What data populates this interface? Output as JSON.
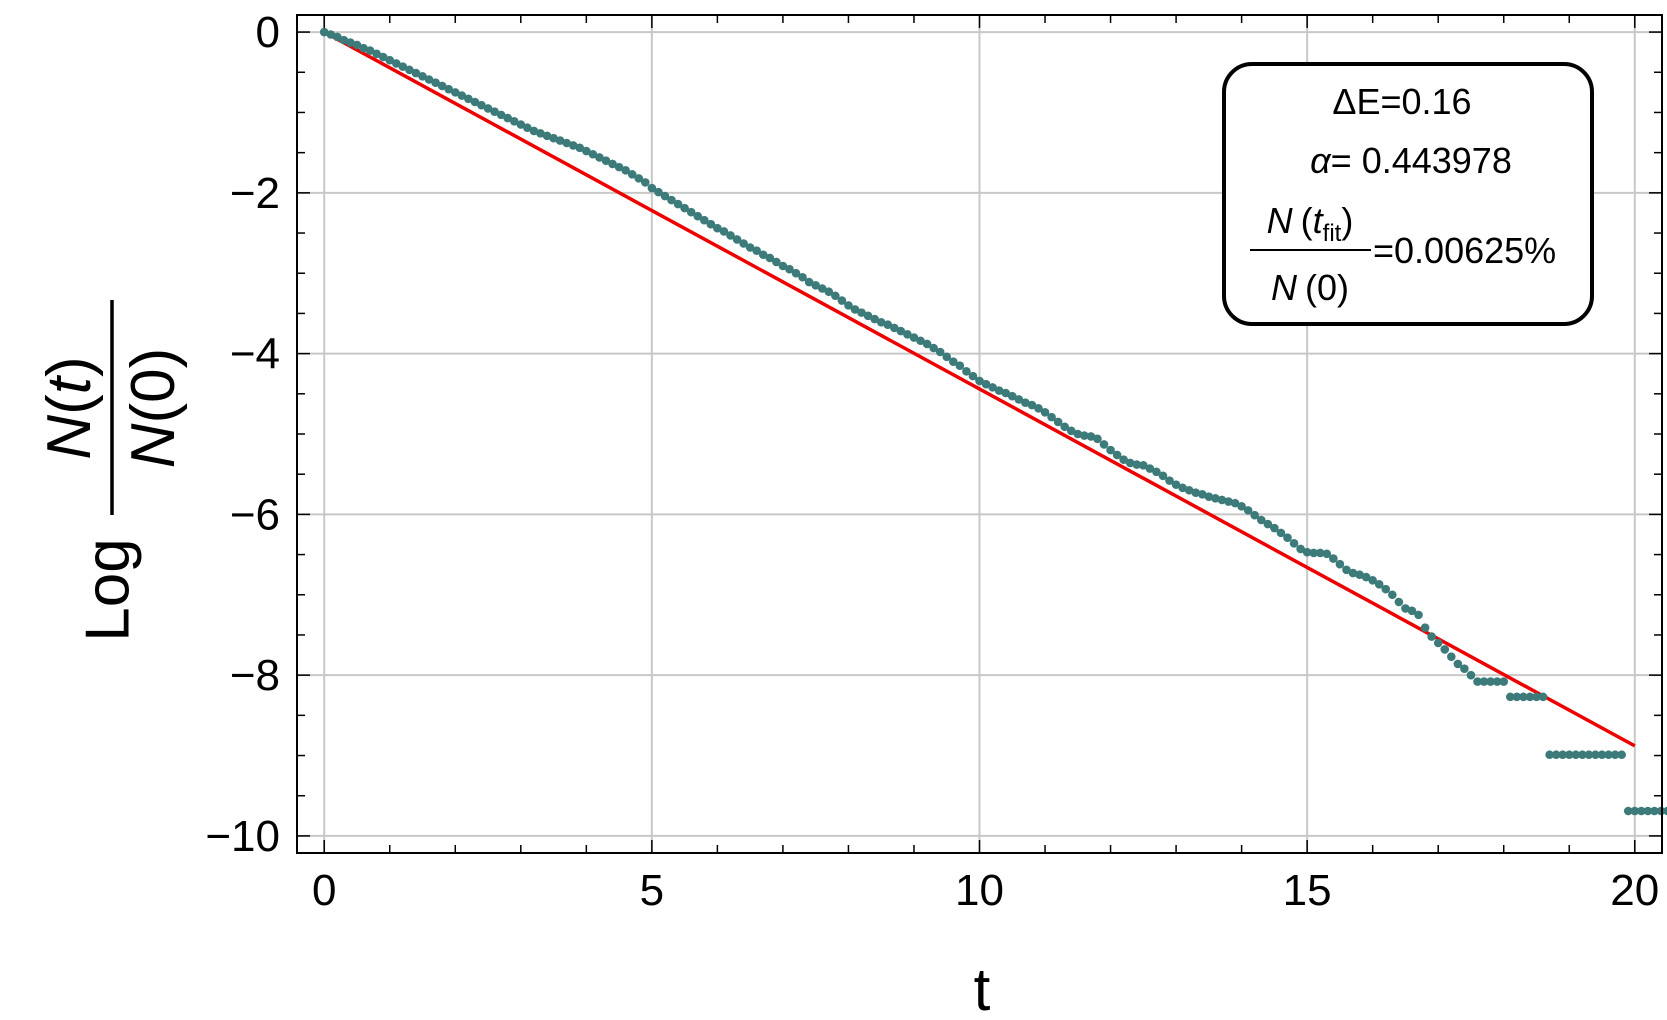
{
  "chart_data": {
    "type": "scatter",
    "title": "",
    "xlabel": "t",
    "ylabel": {
      "prefix": "Log",
      "numerator": "N",
      "numerator_arg": "t",
      "denominator": "N",
      "denominator_arg": "0"
    },
    "xlim": [
      -0.4,
      20.4
    ],
    "ylim": [
      -10.2,
      0.2
    ],
    "grid": true,
    "x_ticks": [
      0,
      5,
      10,
      15,
      20
    ],
    "y_ticks": [
      0,
      -2,
      -4,
      -6,
      -8,
      -10
    ],
    "x_tick_labels": [
      "0",
      "5",
      "10",
      "15",
      "20"
    ],
    "y_tick_labels": [
      "0",
      "−2",
      "−4",
      "−6",
      "−8",
      "−10"
    ],
    "series": [
      {
        "kind": "points",
        "color": "#3d7a7a",
        "x_start": 0,
        "x_step": 0.1,
        "y": [
          0,
          -0.03,
          -0.06,
          -0.1,
          -0.13,
          -0.16,
          -0.2,
          -0.23,
          -0.27,
          -0.31,
          -0.35,
          -0.39,
          -0.43,
          -0.47,
          -0.51,
          -0.55,
          -0.59,
          -0.63,
          -0.67,
          -0.71,
          -0.75,
          -0.79,
          -0.83,
          -0.87,
          -0.91,
          -0.95,
          -0.99,
          -1.03,
          -1.07,
          -1.11,
          -1.15,
          -1.19,
          -1.23,
          -1.26,
          -1.29,
          -1.32,
          -1.35,
          -1.38,
          -1.41,
          -1.44,
          -1.48,
          -1.52,
          -1.56,
          -1.6,
          -1.64,
          -1.68,
          -1.72,
          -1.77,
          -1.82,
          -1.87,
          -1.94,
          -1.99,
          -2.04,
          -2.09,
          -2.14,
          -2.19,
          -2.24,
          -2.29,
          -2.34,
          -2.39,
          -2.44,
          -2.48,
          -2.53,
          -2.58,
          -2.63,
          -2.68,
          -2.72,
          -2.77,
          -2.81,
          -2.86,
          -2.91,
          -2.95,
          -3.0,
          -3.05,
          -3.11,
          -3.15,
          -3.19,
          -3.23,
          -3.28,
          -3.34,
          -3.4,
          -3.45,
          -3.49,
          -3.53,
          -3.57,
          -3.61,
          -3.64,
          -3.68,
          -3.72,
          -3.76,
          -3.8,
          -3.84,
          -3.88,
          -3.93,
          -3.98,
          -4.04,
          -4.1,
          -4.15,
          -4.22,
          -4.28,
          -4.34,
          -4.38,
          -4.42,
          -4.46,
          -4.49,
          -4.53,
          -4.57,
          -4.61,
          -4.64,
          -4.68,
          -4.73,
          -4.79,
          -4.85,
          -4.91,
          -4.96,
          -5.0,
          -5.02,
          -5.03,
          -5.06,
          -5.13,
          -5.2,
          -5.26,
          -5.32,
          -5.36,
          -5.38,
          -5.39,
          -5.43,
          -5.47,
          -5.52,
          -5.58,
          -5.63,
          -5.67,
          -5.7,
          -5.73,
          -5.75,
          -5.78,
          -5.8,
          -5.82,
          -5.84,
          -5.86,
          -5.9,
          -5.95,
          -6.01,
          -6.07,
          -6.12,
          -6.17,
          -6.23,
          -6.29,
          -6.36,
          -6.43,
          -6.47,
          -6.48,
          -6.48,
          -6.49,
          -6.55,
          -6.62,
          -6.69,
          -6.73,
          -6.75,
          -6.78,
          -6.82,
          -6.87,
          -6.93,
          -7.0,
          -7.09,
          -7.17,
          -7.2,
          -7.25,
          -7.41,
          -7.52,
          -7.6,
          -7.68,
          -7.77,
          -7.86,
          -7.92,
          -8.0,
          -8.08,
          -8.08,
          -8.08,
          -8.08,
          -8.08,
          -8.27,
          -8.27,
          -8.27,
          -8.27,
          -8.27,
          -8.27,
          -8.99,
          -8.99,
          -8.99,
          -8.99,
          -8.99,
          -8.99,
          -8.99,
          -8.99,
          -8.99,
          -8.99,
          -8.99,
          -8.99,
          -9.69,
          -9.69,
          -9.69,
          -9.69,
          -9.69,
          -9.69,
          -9.69,
          -9.69,
          -9.69,
          -9.69,
          -9.69
        ]
      },
      {
        "kind": "line",
        "color": "#ee0000",
        "x": [
          0,
          20
        ],
        "y": [
          0,
          -8.88
        ]
      }
    ],
    "annotation": {
      "line1": "ΔE=0.16",
      "line2_symbol": "α",
      "line2_value": "= 0.443978",
      "frac_num_N": "N",
      "frac_num_open": "(",
      "frac_num_t": "t",
      "frac_num_sub": "fit",
      "frac_num_close": ")",
      "frac_den_N": "N",
      "frac_den_rest": "(0)",
      "frac_value": "=0.00625%"
    }
  }
}
